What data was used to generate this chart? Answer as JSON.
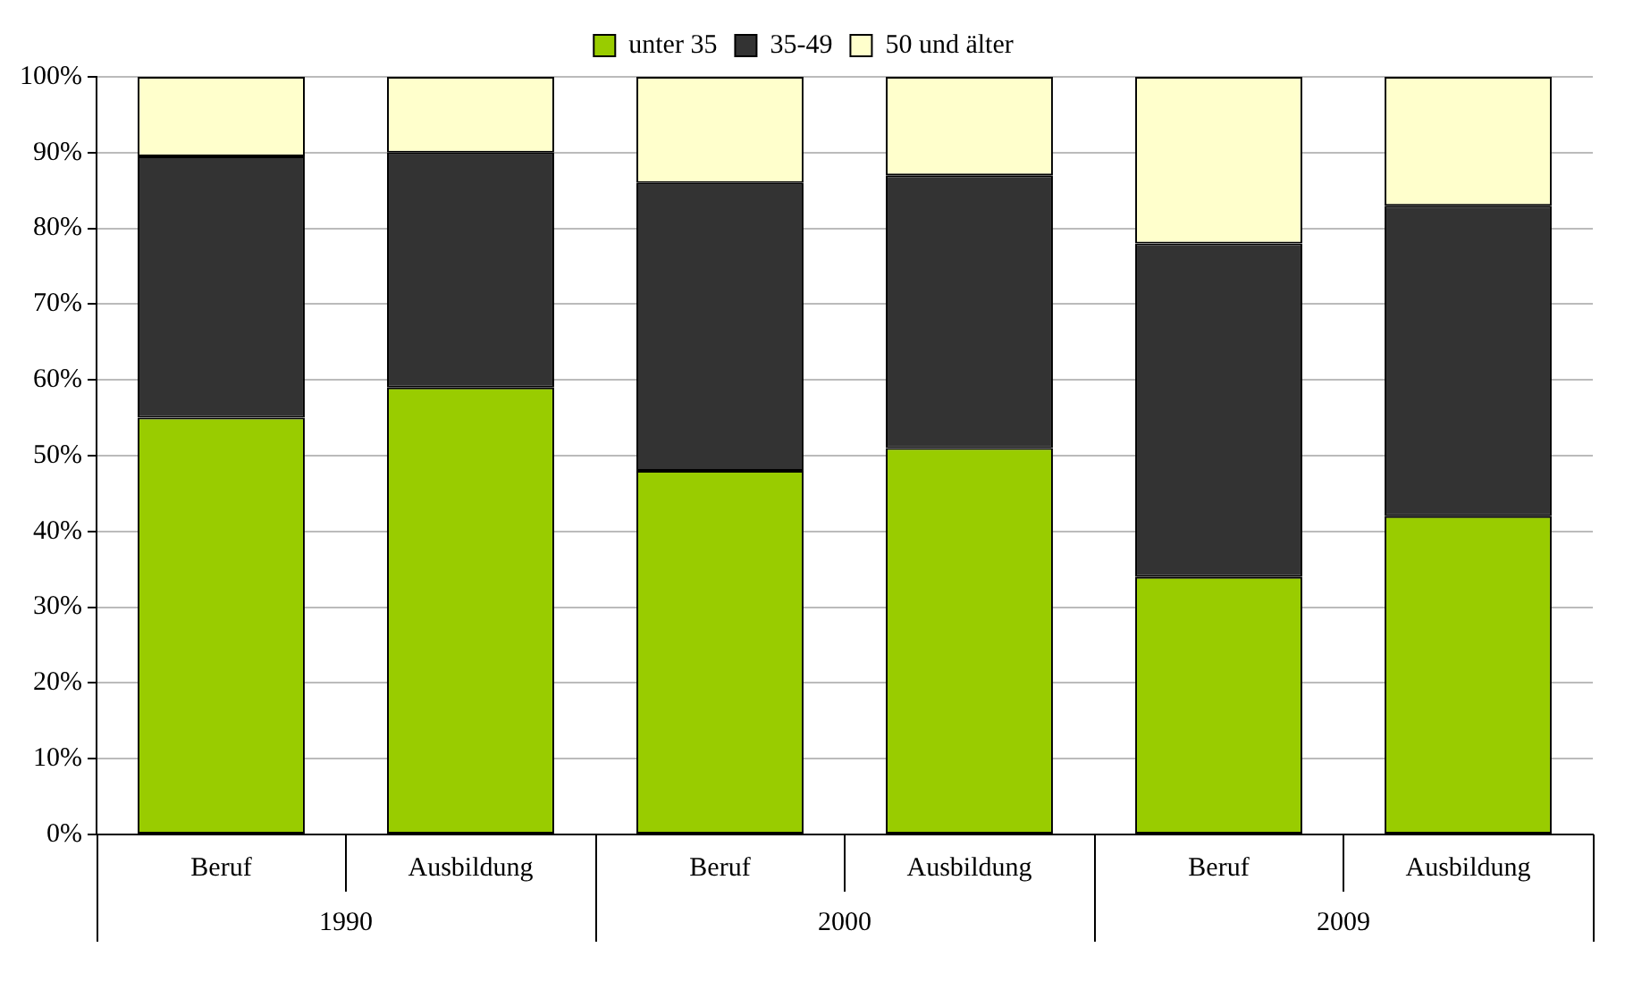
{
  "chart_data": {
    "type": "bar",
    "stacked": true,
    "categories": [
      "Beruf",
      "Ausbildung",
      "Beruf",
      "Ausbildung",
      "Beruf",
      "Ausbildung"
    ],
    "series": [
      {
        "name": "unter 35",
        "color": "#99cc00",
        "values": [
          55,
          59,
          48,
          51,
          34,
          42
        ]
      },
      {
        "name": "35-49",
        "color": "#333333",
        "values": [
          34.5,
          31,
          38,
          36,
          44,
          41
        ]
      },
      {
        "name": "50 und älter",
        "color": "#ffffcc",
        "values": [
          10.5,
          10,
          14,
          13,
          22,
          17
        ]
      }
    ],
    "ylim": [
      0,
      100
    ],
    "yticks": [
      {
        "value": 0,
        "label": "0%"
      },
      {
        "value": 10,
        "label": "10%"
      },
      {
        "value": 20,
        "label": "20%"
      },
      {
        "value": 30,
        "label": "30%"
      },
      {
        "value": 40,
        "label": "40%"
      },
      {
        "value": 50,
        "label": "50%"
      },
      {
        "value": 60,
        "label": "60%"
      },
      {
        "value": 70,
        "label": "70%"
      },
      {
        "value": 80,
        "label": "80%"
      },
      {
        "value": 90,
        "label": "90%"
      },
      {
        "value": 100,
        "label": "100%"
      }
    ],
    "grid": "y",
    "legend": "top",
    "annotations": [
      "1990",
      "2000",
      "2009"
    ]
  }
}
